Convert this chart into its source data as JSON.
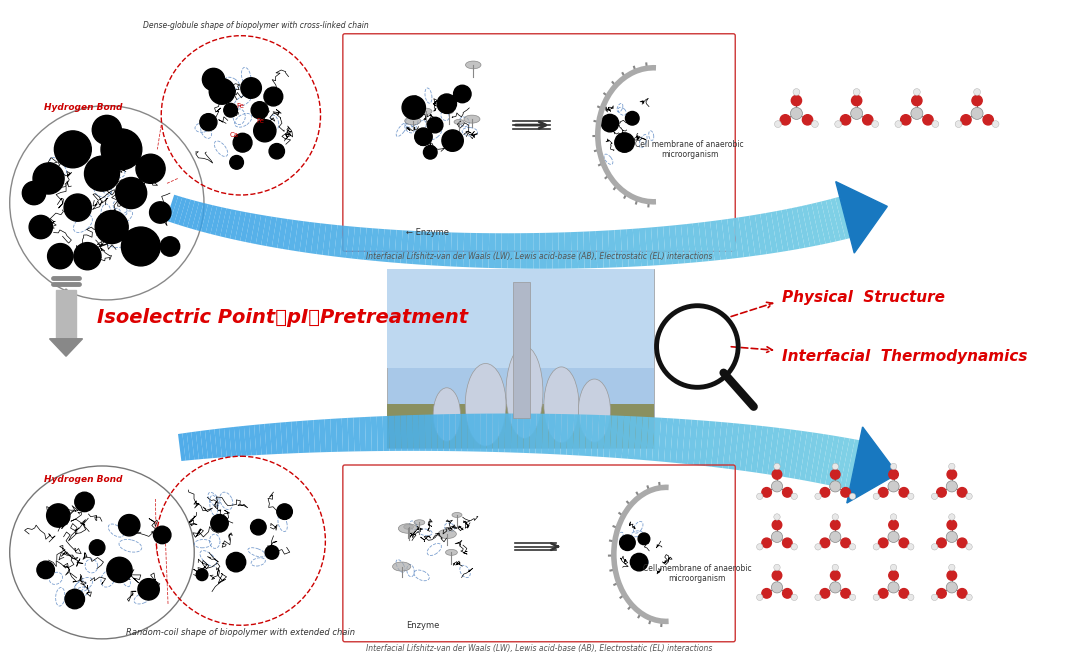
{
  "bg_color": "#ffffff",
  "isoelectric_text": "Isoelectric Point（pI）Pretreatment",
  "physical_structure_text": "Physical  Structure",
  "interfacial_thermo_text": "Interfacial  Thermodynamics",
  "top_label": "Dense-globule shape of biopolymer with cross-linked chain",
  "bottom_label": "Random-coil shape of biopolymer with extended chain",
  "hydrogen_bond_top": "Hydrogen Bond",
  "hydrogen_bond_bottom": "Hydrogen Bond",
  "enzyme_top": "← Enzyme",
  "enzyme_bottom": "Enzyme",
  "cell_membrane_top": "Cell membrane of anaerobic\nmicroorganism",
  "cell_membrane_bottom": "Cell membrane of anaerobic\nmicroorganism",
  "interfacial_caption": "Interfacial Lifshitz-van der Waals (LW), Lewis acid-base (AB), Electrostatic (EL) interactions",
  "red_color": "#cc0000",
  "text_red": "#dd0000",
  "box_border_color": "#cc3333"
}
